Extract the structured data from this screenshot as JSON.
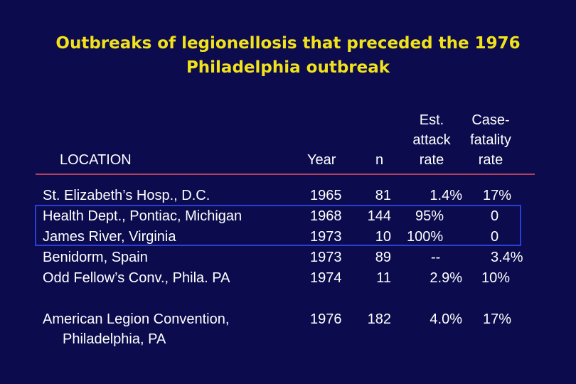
{
  "title": {
    "line1": "Outbreaks of legionellosis that preceded the 1976",
    "line2": "Philadelphia outbreak"
  },
  "headers": {
    "location": "LOCATION",
    "year": "Year",
    "n": "n",
    "attack_line1": "Est.",
    "attack_line2": "attack",
    "attack_line3": "rate",
    "fatality_line1": "Case-",
    "fatality_line2": "fatality",
    "fatality_line3": "rate"
  },
  "rows": [
    {
      "location": "St. Elizabeth’s Hosp., D.C.",
      "year": "1965",
      "n": "81",
      "attack": "1.4%",
      "fatality": "17%"
    },
    {
      "location": "Health Dept., Pontiac, Michigan",
      "year": "1968",
      "n": "144",
      "attack": "95%",
      "fatality": "0"
    },
    {
      "location": "James River, Virginia",
      "year": "1973",
      "n": "10",
      "attack": "100%",
      "fatality": "0"
    },
    {
      "location": "Benidorm, Spain",
      "year": "1973",
      "n": "89",
      "attack": "--",
      "fatality": "3.4%"
    },
    {
      "location": "Odd Fellow’s Conv., Phila. PA",
      "year": "1974",
      "n": "11",
      "attack": "2.9%",
      "fatality": "10%"
    }
  ],
  "summary": {
    "location_line1": "American Legion Convention,",
    "location_line2": "Philadelphia, PA",
    "year": "1976",
    "n": "182",
    "attack": "4.0%",
    "fatality": "17%"
  },
  "colors": {
    "background": "#0b0b4e",
    "title": "#f2e21a",
    "rule": "#b0405e",
    "highlight_box": "#2a3fd8"
  }
}
